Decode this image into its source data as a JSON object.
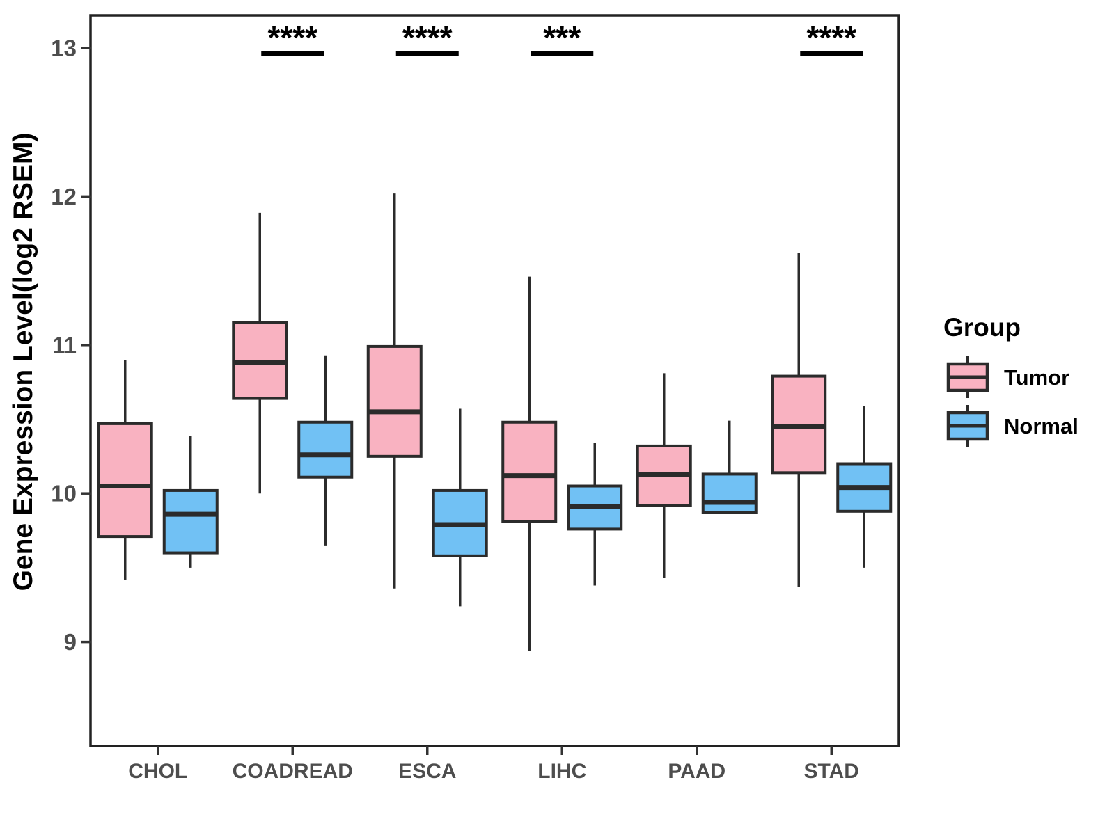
{
  "figure": {
    "background": "#ffffff",
    "panel_border_color": "#222222",
    "axis_text_color": "#4d4d4d",
    "box_border_color": "#2b2b2b"
  },
  "legend": {
    "title": "Group",
    "position": "right",
    "items": [
      {
        "label": "Tumor",
        "color": "#F9B2C1",
        "glyph": "boxplot-key-icon"
      },
      {
        "label": "Normal",
        "color": "#71C1F4",
        "glyph": "boxplot-key-icon"
      }
    ]
  },
  "chart_data": {
    "type": "boxplot",
    "title": "",
    "xlabel": "",
    "ylabel": "Gene Expression Level(log2 RSEM)",
    "ylim": [
      8.3,
      13.22
    ],
    "yticks": [
      9,
      10,
      11,
      12,
      13
    ],
    "grid": false,
    "legend_position": "right",
    "categories": [
      "CHOL",
      "COADREAD",
      "ESCA",
      "LIHC",
      "PAAD",
      "STAD"
    ],
    "stats_order": [
      "whisker_low",
      "q1",
      "median",
      "q3",
      "whisker_high"
    ],
    "series": [
      {
        "name": "Tumor",
        "color": "#F9B2C1",
        "values": [
          [
            9.42,
            9.71,
            10.05,
            10.47,
            10.9
          ],
          [
            10.0,
            10.64,
            10.88,
            11.15,
            11.89
          ],
          [
            9.36,
            10.25,
            10.55,
            10.99,
            12.02
          ],
          [
            8.94,
            9.81,
            10.12,
            10.48,
            11.46
          ],
          [
            9.43,
            9.92,
            10.13,
            10.32,
            10.81
          ],
          [
            9.37,
            10.14,
            10.45,
            10.79,
            11.62
          ]
        ]
      },
      {
        "name": "Normal",
        "color": "#71C1F4",
        "values": [
          [
            9.5,
            9.6,
            9.86,
            10.02,
            10.39
          ],
          [
            9.65,
            10.11,
            10.26,
            10.48,
            10.93
          ],
          [
            9.24,
            9.58,
            9.79,
            10.02,
            10.57
          ],
          [
            9.38,
            9.76,
            9.91,
            10.05,
            10.34
          ],
          [
            9.87,
            9.87,
            9.94,
            10.13,
            10.49
          ],
          [
            9.5,
            9.88,
            10.04,
            10.2,
            10.59
          ]
        ]
      }
    ],
    "significance": [
      {
        "category": "COADREAD",
        "label": "****"
      },
      {
        "category": "ESCA",
        "label": "****"
      },
      {
        "category": "LIHC",
        "label": "***"
      },
      {
        "category": "STAD",
        "label": "****"
      }
    ]
  }
}
